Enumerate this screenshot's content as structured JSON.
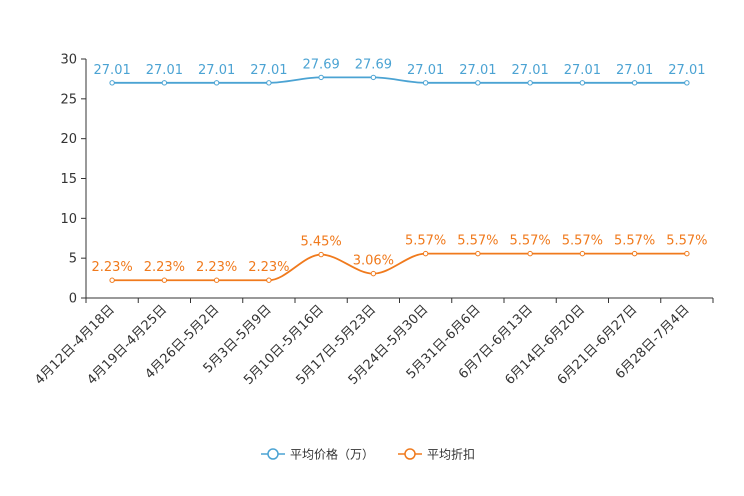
{
  "chart_data": {
    "type": "line",
    "categories": [
      "4月12日-4月18日",
      "4月19日-4月25日",
      "4月26日-5月2日",
      "5月3日-5月9日",
      "5月10日-5月16日",
      "5月17日-5月23日",
      "5月24日-5月30日",
      "5月31日-6月6日",
      "6月7日-6月13日",
      "6月14日-6月20日",
      "6月21日-6月27日",
      "6月28日-7月4日"
    ],
    "series": [
      {
        "name": "平均价格（万）",
        "color": "#4ba3d3",
        "values": [
          27.01,
          27.01,
          27.01,
          27.01,
          27.69,
          27.69,
          27.01,
          27.01,
          27.01,
          27.01,
          27.01,
          27.01
        ],
        "labels": [
          "27.01",
          "27.01",
          "27.01",
          "27.01",
          "27.69",
          "27.69",
          "27.01",
          "27.01",
          "27.01",
          "27.01",
          "27.01",
          "27.01"
        ]
      },
      {
        "name": "平均折扣",
        "color": "#f07a1d",
        "values": [
          2.23,
          2.23,
          2.23,
          2.23,
          5.45,
          3.06,
          5.57,
          5.57,
          5.57,
          5.57,
          5.57,
          5.57
        ],
        "labels": [
          "2.23%",
          "2.23%",
          "2.23%",
          "2.23%",
          "5.45%",
          "3.06%",
          "5.57%",
          "5.57%",
          "5.57%",
          "5.57%",
          "5.57%",
          "5.57%"
        ]
      }
    ],
    "yticks": [
      "0",
      "5",
      "10",
      "15",
      "20",
      "25",
      "30"
    ],
    "ylim": [
      0,
      30
    ],
    "title": "",
    "xlabel": "",
    "ylabel": "",
    "legend": "bottom-center"
  }
}
